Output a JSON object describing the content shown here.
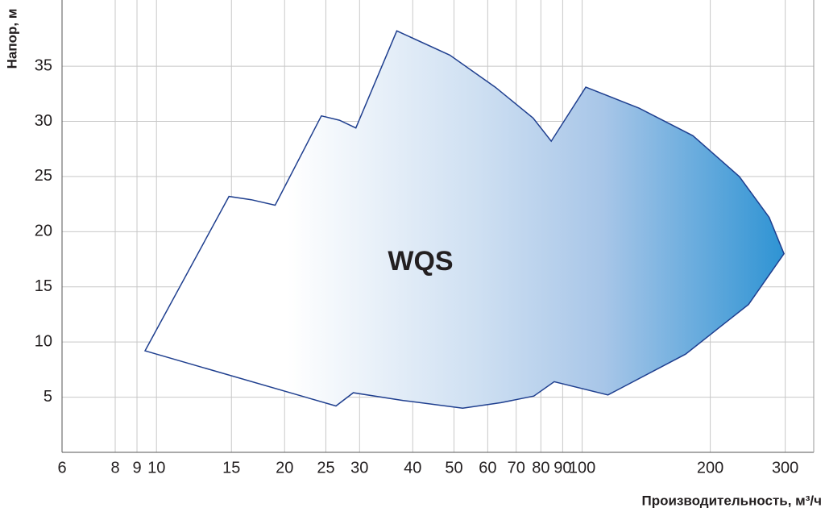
{
  "chart_data": {
    "type": "area",
    "x_label": "Производительность, м³/ч",
    "y_label": "Напор, м",
    "x_log": true,
    "xlim": [
      6,
      350
    ],
    "xticks": [
      6,
      8,
      9,
      10,
      15,
      20,
      25,
      30,
      40,
      50,
      60,
      70,
      80,
      90,
      100,
      200,
      300
    ],
    "ylim": [
      0,
      41
    ],
    "yticks": [
      5,
      10,
      15,
      20,
      25,
      30,
      35
    ],
    "grid": true,
    "series": [
      {
        "name": "WQS",
        "color": "#1a8bd0",
        "edge_color": "#1f3f8f",
        "x": [
          9.4,
          14.8,
          16.7,
          19.0,
          24.4,
          26.9,
          29.4,
          36.7,
          48.9,
          62.5,
          76.7,
          84.6,
          102,
          136,
          182,
          234,
          275,
          298,
          246,
          175,
          115,
          86,
          77,
          64.5,
          52.4,
          38,
          29,
          26.4,
          9.4
        ],
        "values": [
          9.2,
          23.2,
          22.9,
          22.4,
          30.5,
          30.1,
          29.4,
          38.2,
          36.0,
          33.1,
          30.3,
          28.2,
          33.1,
          31.2,
          28.7,
          25.0,
          21.3,
          18.0,
          13.4,
          8.9,
          5.2,
          6.4,
          5.1,
          4.5,
          4.0,
          4.7,
          5.4,
          4.2,
          9.2
        ]
      }
    ]
  }
}
